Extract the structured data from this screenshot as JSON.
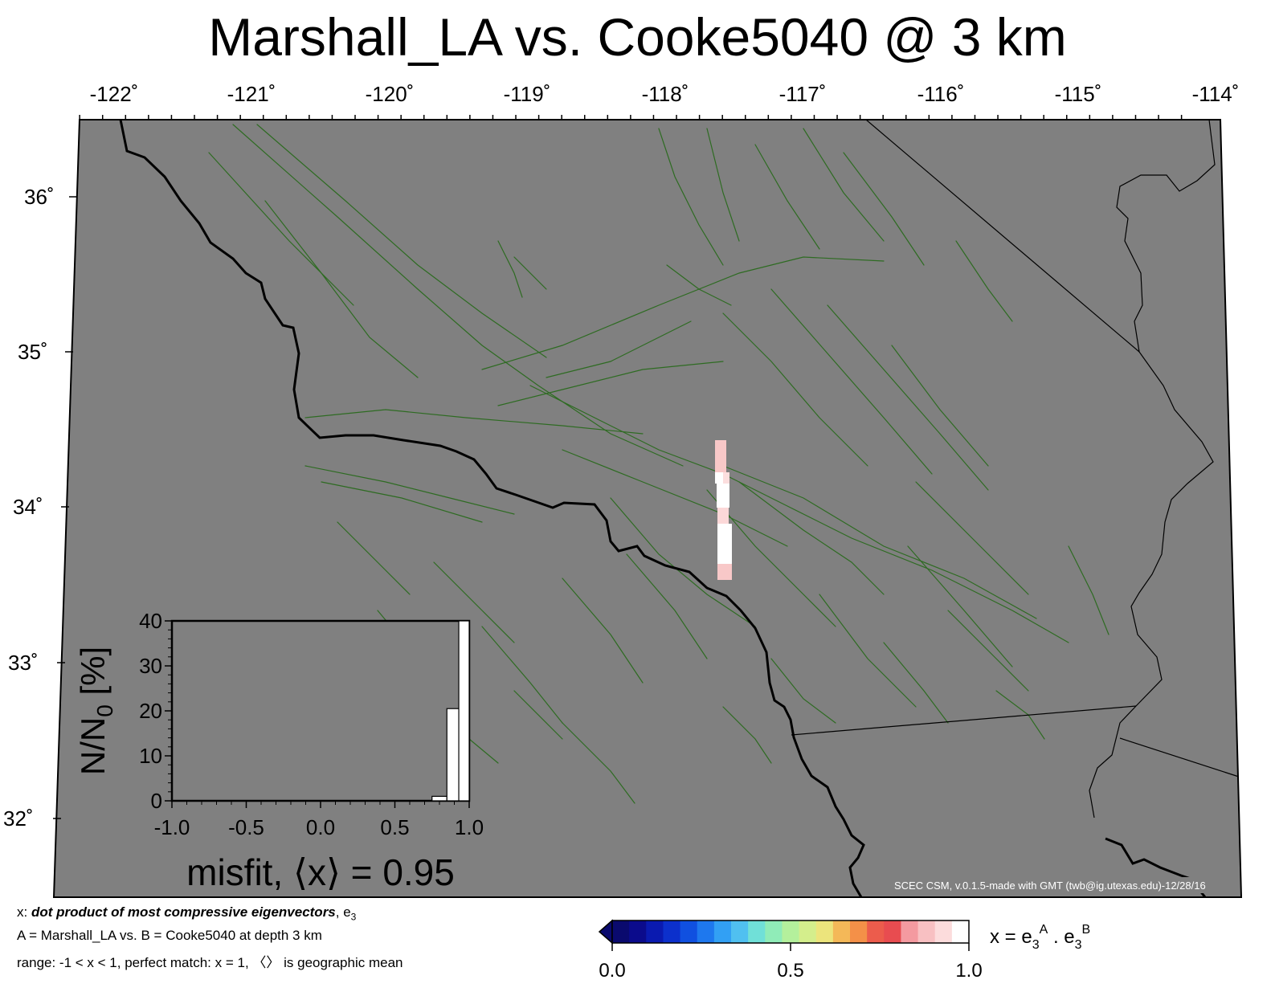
{
  "title": "Marshall_LA vs. Cooke5040 @ 3 km",
  "map": {
    "lon_ticks": [
      "-122˚",
      "-121˚",
      "-120˚",
      "-119˚",
      "-118˚",
      "-117˚",
      "-116˚",
      "-115˚",
      "-114˚"
    ],
    "lat_ticks": [
      "36˚",
      "35˚",
      "34˚",
      "33˚",
      "32˚"
    ],
    "credit": "SCEC CSM, v.0.1.5-made with GMT (twb@ig.utexas.edu)-12/28/16",
    "colors": {
      "land": "#808080",
      "faults": "#2e6b22",
      "coastline": "#000000",
      "boundaries": "#000000"
    }
  },
  "inset": {
    "ylabel_main": "N/N",
    "ylabel_sub": "0",
    "ylabel_tail": " [%]",
    "x_ticks": [
      "-1.0",
      "-0.5",
      "0.0",
      "0.5",
      "1.0"
    ],
    "y_ticks": [
      "0",
      "10",
      "20",
      "30",
      "40"
    ],
    "misfit_label": "misfit, ⟨x⟩ = 0.95",
    "chart_data": {
      "type": "bar",
      "x_centers": [
        0.8,
        0.9,
        0.98
      ],
      "values": [
        1,
        20.5,
        40
      ],
      "xlim": [
        -1.0,
        1.0
      ],
      "ylim": [
        0,
        40
      ],
      "ylabel": "N/N0 [%]"
    }
  },
  "notes": {
    "line1_prefix": "x: ",
    "line1_emph": "dot product of most compressive eigenvectors",
    "line1_suffix": ", e",
    "line1_sub": "3",
    "line2": "A = Marshall_LA vs.  B = Cooke5040 at depth 3 km",
    "line3": "range: -1 < x < 1, perfect match: x = 1, 〈〉 is geographic mean"
  },
  "colorbar": {
    "tick_labels": [
      "0.0",
      "0.5",
      "1.0"
    ],
    "label_x": "x = e",
    "label_sub1": "3",
    "label_sup1": "A",
    "label_dot": " . e",
    "label_sub2": "3",
    "label_sup2": "B",
    "colors": [
      "#0a0a6e",
      "#0b0b8c",
      "#0a1ab0",
      "#0c30cc",
      "#1050e0",
      "#1e78ee",
      "#32a0f4",
      "#50c0f0",
      "#70e0d8",
      "#90ecb8",
      "#b4f09c",
      "#d4ee8c",
      "#ece47c",
      "#f4b858",
      "#f49048",
      "#ec5c4c",
      "#e84c50",
      "#f49aa0",
      "#f8c0c2",
      "#fcdcdc",
      "#ffffff"
    ]
  }
}
